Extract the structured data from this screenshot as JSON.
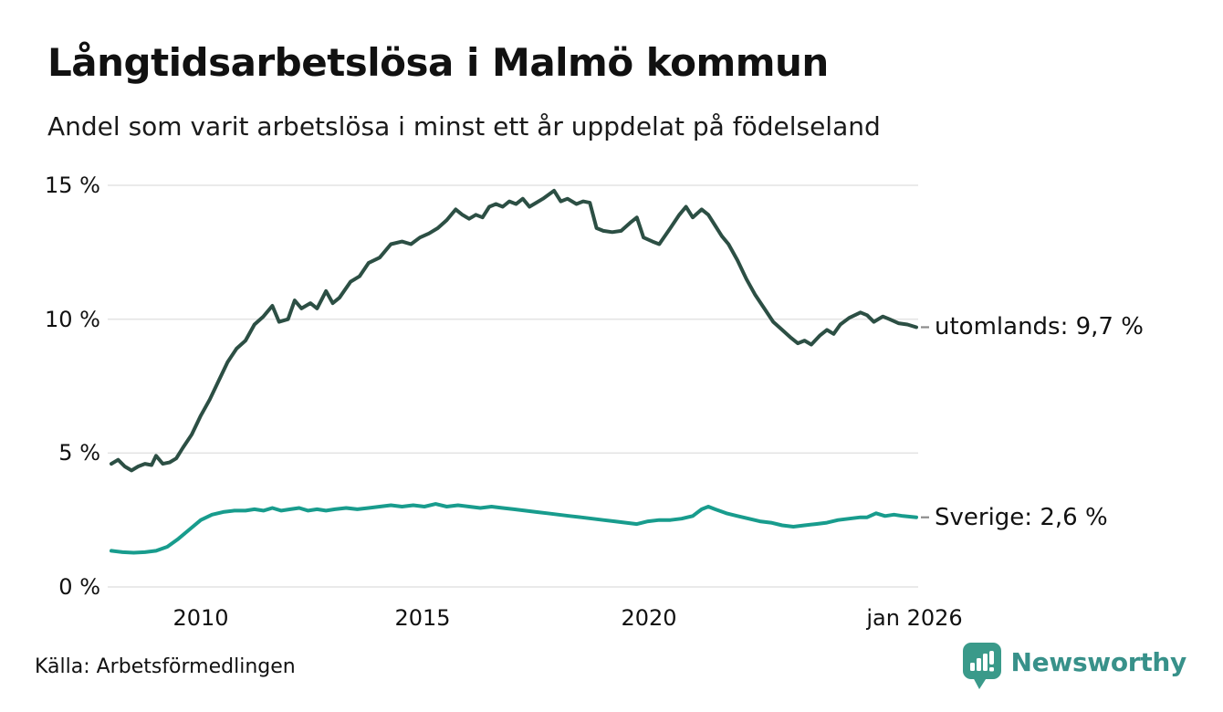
{
  "header": {
    "title": "Långtidsarbetslösa i Malmö kommun",
    "subtitle": "Andel som varit arbetslösa i minst ett år uppdelat på födelseland"
  },
  "chart_data": {
    "type": "line",
    "title": "Långtidsarbetslösa i Malmö kommun",
    "subtitle": "Andel som varit arbetslösa i minst ett år uppdelat på födelseland",
    "grid": true,
    "grid_color": "#e4e4e4",
    "leader_dash_color": "#8c8c8c",
    "x_axis": {
      "ticks": [
        "2010",
        "2015",
        "2020",
        "jan 2026"
      ],
      "tick_years": [
        2010,
        2015,
        2020,
        2026.04
      ],
      "range": [
        2008,
        2026.1
      ]
    },
    "y_axis": {
      "unit": "%",
      "ticks": [
        "15 %",
        "10 %",
        "5 %",
        "0 %"
      ],
      "tick_values": [
        15,
        10,
        5,
        0
      ],
      "range": [
        0,
        15.5
      ]
    },
    "series": [
      {
        "name": "utomlands",
        "label": "utomlands: 9,7 %",
        "end_value": 9.7,
        "color": "#2c4f44",
        "points": [
          [
            2008.0,
            4.6
          ],
          [
            2008.15,
            4.75
          ],
          [
            2008.3,
            4.5
          ],
          [
            2008.45,
            4.35
          ],
          [
            2008.6,
            4.5
          ],
          [
            2008.75,
            4.6
          ],
          [
            2008.9,
            4.55
          ],
          [
            2009.0,
            4.9
          ],
          [
            2009.15,
            4.6
          ],
          [
            2009.3,
            4.65
          ],
          [
            2009.45,
            4.8
          ],
          [
            2009.6,
            5.2
          ],
          [
            2009.8,
            5.7
          ],
          [
            2010.0,
            6.4
          ],
          [
            2010.2,
            7.0
          ],
          [
            2010.4,
            7.7
          ],
          [
            2010.6,
            8.4
          ],
          [
            2010.8,
            8.9
          ],
          [
            2011.0,
            9.2
          ],
          [
            2011.2,
            9.8
          ],
          [
            2011.4,
            10.1
          ],
          [
            2011.6,
            10.5
          ],
          [
            2011.75,
            9.9
          ],
          [
            2011.95,
            10.0
          ],
          [
            2012.1,
            10.7
          ],
          [
            2012.25,
            10.4
          ],
          [
            2012.45,
            10.6
          ],
          [
            2012.6,
            10.4
          ],
          [
            2012.8,
            11.05
          ],
          [
            2012.95,
            10.6
          ],
          [
            2013.1,
            10.8
          ],
          [
            2013.35,
            11.4
          ],
          [
            2013.55,
            11.6
          ],
          [
            2013.75,
            12.1
          ],
          [
            2014.0,
            12.3
          ],
          [
            2014.25,
            12.8
          ],
          [
            2014.5,
            12.9
          ],
          [
            2014.7,
            12.8
          ],
          [
            2014.9,
            13.05
          ],
          [
            2015.1,
            13.2
          ],
          [
            2015.3,
            13.4
          ],
          [
            2015.5,
            13.7
          ],
          [
            2015.7,
            14.1
          ],
          [
            2015.85,
            13.9
          ],
          [
            2016.0,
            13.75
          ],
          [
            2016.15,
            13.9
          ],
          [
            2016.3,
            13.8
          ],
          [
            2016.45,
            14.2
          ],
          [
            2016.6,
            14.3
          ],
          [
            2016.75,
            14.2
          ],
          [
            2016.9,
            14.4
          ],
          [
            2017.05,
            14.3
          ],
          [
            2017.2,
            14.5
          ],
          [
            2017.35,
            14.2
          ],
          [
            2017.5,
            14.35
          ],
          [
            2017.65,
            14.5
          ],
          [
            2017.9,
            14.8
          ],
          [
            2018.05,
            14.4
          ],
          [
            2018.2,
            14.5
          ],
          [
            2018.4,
            14.3
          ],
          [
            2018.55,
            14.4
          ],
          [
            2018.7,
            14.35
          ],
          [
            2018.85,
            13.4
          ],
          [
            2019.0,
            13.3
          ],
          [
            2019.2,
            13.25
          ],
          [
            2019.4,
            13.3
          ],
          [
            2019.6,
            13.6
          ],
          [
            2019.75,
            13.8
          ],
          [
            2019.9,
            13.05
          ],
          [
            2020.1,
            12.9
          ],
          [
            2020.25,
            12.8
          ],
          [
            2020.5,
            13.4
          ],
          [
            2020.7,
            13.9
          ],
          [
            2020.85,
            14.2
          ],
          [
            2021.0,
            13.8
          ],
          [
            2021.2,
            14.1
          ],
          [
            2021.35,
            13.9
          ],
          [
            2021.5,
            13.5
          ],
          [
            2021.65,
            13.1
          ],
          [
            2021.8,
            12.8
          ],
          [
            2022.0,
            12.2
          ],
          [
            2022.2,
            11.5
          ],
          [
            2022.4,
            10.9
          ],
          [
            2022.6,
            10.4
          ],
          [
            2022.8,
            9.9
          ],
          [
            2023.0,
            9.6
          ],
          [
            2023.2,
            9.3
          ],
          [
            2023.35,
            9.1
          ],
          [
            2023.5,
            9.2
          ],
          [
            2023.65,
            9.05
          ],
          [
            2023.85,
            9.4
          ],
          [
            2024.0,
            9.6
          ],
          [
            2024.15,
            9.45
          ],
          [
            2024.3,
            9.8
          ],
          [
            2024.5,
            10.05
          ],
          [
            2024.75,
            10.25
          ],
          [
            2024.9,
            10.15
          ],
          [
            2025.05,
            9.9
          ],
          [
            2025.25,
            10.1
          ],
          [
            2025.4,
            10.0
          ],
          [
            2025.6,
            9.85
          ],
          [
            2025.8,
            9.8
          ],
          [
            2026.0,
            9.7
          ]
        ]
      },
      {
        "name": "Sverige",
        "label": "Sverige: 2,6 %",
        "end_value": 2.6,
        "color": "#189c8d",
        "points": [
          [
            2008.0,
            1.35
          ],
          [
            2008.25,
            1.3
          ],
          [
            2008.5,
            1.28
          ],
          [
            2008.75,
            1.3
          ],
          [
            2009.0,
            1.35
          ],
          [
            2009.25,
            1.5
          ],
          [
            2009.5,
            1.8
          ],
          [
            2009.75,
            2.15
          ],
          [
            2010.0,
            2.5
          ],
          [
            2010.25,
            2.7
          ],
          [
            2010.5,
            2.8
          ],
          [
            2010.75,
            2.85
          ],
          [
            2011.0,
            2.85
          ],
          [
            2011.2,
            2.9
          ],
          [
            2011.4,
            2.85
          ],
          [
            2011.6,
            2.95
          ],
          [
            2011.8,
            2.85
          ],
          [
            2012.0,
            2.9
          ],
          [
            2012.2,
            2.95
          ],
          [
            2012.4,
            2.85
          ],
          [
            2012.6,
            2.9
          ],
          [
            2012.8,
            2.85
          ],
          [
            2013.0,
            2.9
          ],
          [
            2013.25,
            2.95
          ],
          [
            2013.5,
            2.9
          ],
          [
            2013.75,
            2.95
          ],
          [
            2014.0,
            3.0
          ],
          [
            2014.25,
            3.05
          ],
          [
            2014.5,
            3.0
          ],
          [
            2014.75,
            3.05
          ],
          [
            2015.0,
            3.0
          ],
          [
            2015.25,
            3.1
          ],
          [
            2015.5,
            3.0
          ],
          [
            2015.75,
            3.05
          ],
          [
            2016.0,
            3.0
          ],
          [
            2016.25,
            2.95
          ],
          [
            2016.5,
            3.0
          ],
          [
            2016.75,
            2.95
          ],
          [
            2017.0,
            2.9
          ],
          [
            2017.25,
            2.85
          ],
          [
            2017.5,
            2.8
          ],
          [
            2017.75,
            2.75
          ],
          [
            2018.0,
            2.7
          ],
          [
            2018.25,
            2.65
          ],
          [
            2018.5,
            2.6
          ],
          [
            2018.75,
            2.55
          ],
          [
            2019.0,
            2.5
          ],
          [
            2019.25,
            2.45
          ],
          [
            2019.5,
            2.4
          ],
          [
            2019.75,
            2.35
          ],
          [
            2020.0,
            2.45
          ],
          [
            2020.25,
            2.5
          ],
          [
            2020.5,
            2.5
          ],
          [
            2020.75,
            2.55
          ],
          [
            2021.0,
            2.65
          ],
          [
            2021.2,
            2.9
          ],
          [
            2021.35,
            3.0
          ],
          [
            2021.5,
            2.9
          ],
          [
            2021.75,
            2.75
          ],
          [
            2022.0,
            2.65
          ],
          [
            2022.25,
            2.55
          ],
          [
            2022.5,
            2.45
          ],
          [
            2022.75,
            2.4
          ],
          [
            2023.0,
            2.3
          ],
          [
            2023.25,
            2.25
          ],
          [
            2023.5,
            2.3
          ],
          [
            2023.75,
            2.35
          ],
          [
            2024.0,
            2.4
          ],
          [
            2024.25,
            2.5
          ],
          [
            2024.5,
            2.55
          ],
          [
            2024.75,
            2.6
          ],
          [
            2024.9,
            2.6
          ],
          [
            2025.1,
            2.75
          ],
          [
            2025.3,
            2.65
          ],
          [
            2025.5,
            2.7
          ],
          [
            2025.7,
            2.65
          ],
          [
            2026.0,
            2.6
          ]
        ]
      }
    ]
  },
  "footer": {
    "source": "Källa: Arbetsförmedlingen"
  },
  "logo": {
    "brand": "Newsworthy",
    "color": "#38918a"
  }
}
